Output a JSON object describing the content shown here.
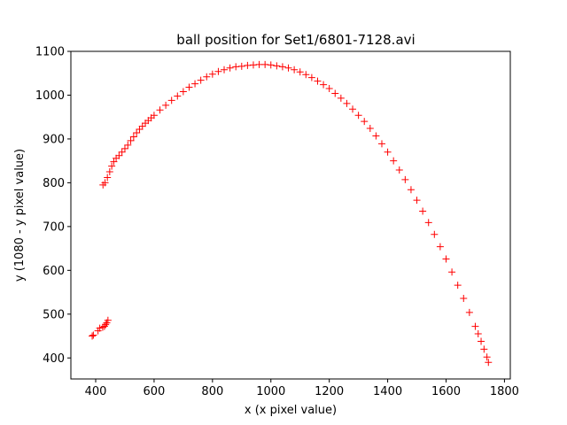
{
  "chart_data": {
    "type": "scatter",
    "title": "ball position for Set1/6801-7128.avi",
    "xlabel": "x (x pixel value)",
    "ylabel": "y (1080 - y pixel value)",
    "xlim": [
      315,
      1820
    ],
    "ylim": [
      352,
      1100
    ],
    "xticks": [
      400,
      600,
      800,
      1000,
      1200,
      1400,
      1600,
      1800
    ],
    "yticks": [
      400,
      500,
      600,
      700,
      800,
      900,
      1000,
      1100
    ],
    "grid": false,
    "legend": "none",
    "marker": "+",
    "color": "#ff0000",
    "series": [
      {
        "x": [
          388,
          392,
          408,
          414,
          424,
          430,
          434,
          438,
          442,
          425,
          432,
          440,
          448,
          455,
          462,
          470,
          480,
          490,
          500,
          510,
          520,
          530,
          540,
          550,
          560,
          570,
          580,
          590,
          600,
          620,
          640,
          660,
          680,
          700,
          720,
          740,
          760,
          780,
          800,
          820,
          840,
          860,
          880,
          900,
          920,
          940,
          960,
          980,
          1000,
          1020,
          1040,
          1060,
          1080,
          1100,
          1120,
          1140,
          1160,
          1180,
          1200,
          1220,
          1240,
          1260,
          1280,
          1300,
          1320,
          1340,
          1360,
          1380,
          1400,
          1420,
          1440,
          1460,
          1480,
          1500,
          1520,
          1540,
          1560,
          1580,
          1600,
          1620,
          1640,
          1660,
          1680,
          1700,
          1710,
          1720,
          1730,
          1740,
          1745
        ],
        "y": [
          450,
          452,
          462,
          468,
          470,
          472,
          476,
          480,
          486,
          795,
          800,
          812,
          825,
          838,
          848,
          856,
          862,
          870,
          878,
          886,
          896,
          905,
          914,
          922,
          929,
          936,
          942,
          948,
          954,
          966,
          977,
          988,
          998,
          1008,
          1018,
          1026,
          1034,
          1042,
          1048,
          1054,
          1058,
          1062,
          1065,
          1066,
          1068,
          1069,
          1070,
          1070,
          1069,
          1067,
          1065,
          1062,
          1058,
          1053,
          1047,
          1040,
          1032,
          1024,
          1015,
          1004,
          993,
          981,
          968,
          954,
          940,
          924,
          907,
          889,
          870,
          850,
          829,
          807,
          784,
          760,
          735,
          709,
          682,
          654,
          626,
          596,
          566,
          536,
          504,
          472,
          455,
          438,
          420,
          402,
          390
        ]
      }
    ]
  }
}
